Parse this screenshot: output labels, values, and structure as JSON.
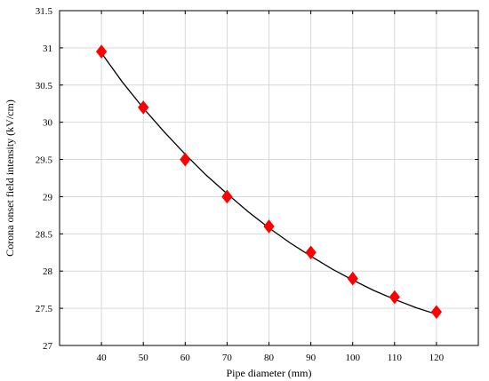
{
  "chart_data": {
    "type": "scatter",
    "title": "",
    "xlabel": "Pipe diameter (mm)",
    "ylabel": "Corona onset field intensity (kV/cm)",
    "xlim": [
      30,
      130
    ],
    "ylim": [
      27,
      31.5
    ],
    "x_ticks": [
      40,
      50,
      60,
      70,
      80,
      90,
      100,
      110,
      120
    ],
    "y_ticks": [
      27,
      27.5,
      28,
      28.5,
      29,
      29.5,
      30,
      30.5,
      31,
      31.5
    ],
    "grid": true,
    "legend": "none",
    "series": [
      {
        "marker": "diamond",
        "color": "#ff0000",
        "x": [
          40,
          50,
          60,
          70,
          80,
          90,
          100,
          110,
          120
        ],
        "y": [
          30.95,
          30.2,
          29.5,
          29.0,
          28.6,
          28.25,
          27.9,
          27.65,
          27.45
        ]
      }
    ],
    "fit_curve": {
      "color": "#000000",
      "x": [
        40,
        45,
        50,
        55,
        60,
        65,
        70,
        75,
        80,
        85,
        90,
        95,
        100,
        105,
        110,
        115,
        120
      ],
      "y": [
        30.93,
        30.54,
        30.19,
        29.87,
        29.57,
        29.29,
        29.04,
        28.8,
        28.58,
        28.38,
        28.2,
        28.03,
        27.88,
        27.74,
        27.62,
        27.51,
        27.42
      ]
    }
  }
}
